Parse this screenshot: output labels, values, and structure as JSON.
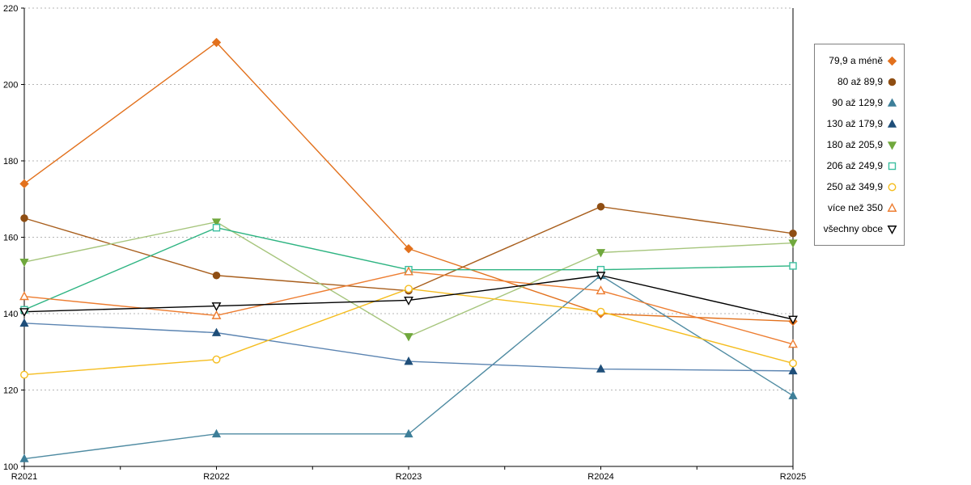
{
  "chart_data": {
    "type": "line",
    "title": "",
    "xlabel": "",
    "ylabel": "",
    "x_labels": [
      "R2021",
      "R2022",
      "R2023",
      "R2024",
      "R2025"
    ],
    "y_ticks": [
      100,
      120,
      140,
      160,
      180,
      200,
      220
    ],
    "ylim": [
      100,
      220
    ],
    "grid": "horizontal-dotted",
    "legend_position": "right",
    "series": [
      {
        "name": "79,9 a méně",
        "marker": "diamond",
        "style": "filled",
        "color": "#e2711d",
        "line_color": "#e2711d",
        "values": [
          174,
          211,
          157,
          140,
          138
        ]
      },
      {
        "name": "80 až 89,9",
        "marker": "circle",
        "style": "filled",
        "color": "#8f4e13",
        "line_color": "#a85e1c",
        "values": [
          165,
          150,
          146,
          168,
          161
        ]
      },
      {
        "name": "90 až 129,9",
        "marker": "triangle",
        "style": "filled",
        "color": "#3e7f99",
        "line_color": "#4f8ba2",
        "values": [
          102,
          108.5,
          108.5,
          150,
          118.5
        ]
      },
      {
        "name": "130 až 179,9",
        "marker": "triangle",
        "style": "filled",
        "color": "#1f4e79",
        "line_color": "#5b84b1",
        "values": [
          137.5,
          135,
          127.5,
          125.5,
          125
        ]
      },
      {
        "name": "180 až 205,9",
        "marker": "triangle-down",
        "style": "filled",
        "color": "#70a83d",
        "line_color": "#a6c57c",
        "values": [
          153.5,
          164,
          134,
          156,
          158.5
        ]
      },
      {
        "name": "206 až 249,9",
        "marker": "square",
        "style": "open",
        "color": "#3cbfa0",
        "line_color": "#2eb482",
        "values": [
          141,
          162.5,
          151.5,
          151.5,
          152.5
        ]
      },
      {
        "name": "250 až 349,9",
        "marker": "circle",
        "style": "open",
        "color": "#f5bd1f",
        "line_color": "#f5bd1f",
        "values": [
          124,
          128,
          146.5,
          140.5,
          127
        ]
      },
      {
        "name": "více než 350",
        "marker": "triangle",
        "style": "open",
        "color": "#ed7d31",
        "line_color": "#ed7d31",
        "values": [
          144.5,
          139.5,
          151,
          146,
          132
        ]
      },
      {
        "name": "všechny obce",
        "marker": "triangle-down",
        "style": "open",
        "color": "#000000",
        "line_color": "#000000",
        "values": [
          140.5,
          142,
          143.5,
          150,
          138.5
        ]
      }
    ]
  }
}
